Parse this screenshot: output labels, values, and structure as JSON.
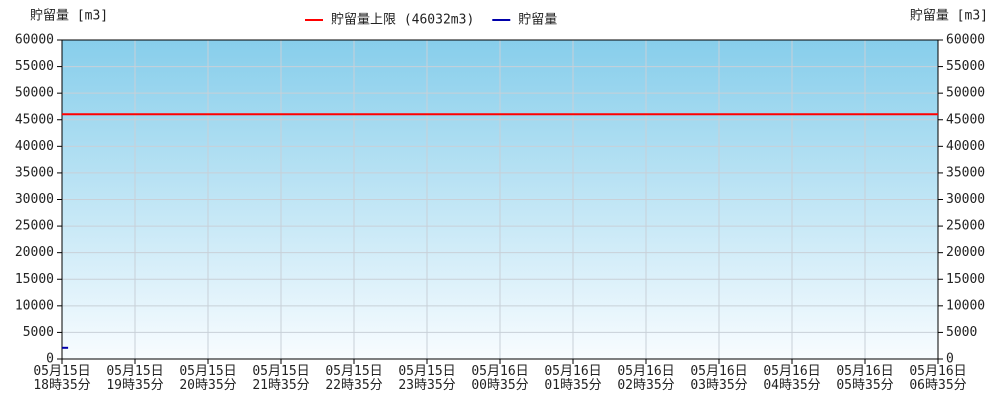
{
  "chart_data": {
    "type": "line",
    "y_label": "貯留量 [m3]",
    "y2_label": "貯留量 [m3]",
    "xlim": [
      "05月15日18時35分",
      "05月16日06時35分"
    ],
    "xticks": [
      [
        "05月15日",
        "18時35分"
      ],
      [
        "05月15日",
        "19時35分"
      ],
      [
        "05月15日",
        "20時35分"
      ],
      [
        "05月15日",
        "21時35分"
      ],
      [
        "05月15日",
        "22時35分"
      ],
      [
        "05月15日",
        "23時35分"
      ],
      [
        "05月16日",
        "00時35分"
      ],
      [
        "05月16日",
        "01時35分"
      ],
      [
        "05月16日",
        "02時35分"
      ],
      [
        "05月16日",
        "03時35分"
      ],
      [
        "05月16日",
        "04時35分"
      ],
      [
        "05月16日",
        "05時35分"
      ],
      [
        "05月16日",
        "06時35分"
      ]
    ],
    "ylim": [
      0,
      60000
    ],
    "yticks": [
      0,
      5000,
      10000,
      15000,
      20000,
      25000,
      30000,
      35000,
      40000,
      45000,
      50000,
      55000,
      60000
    ],
    "grid": true,
    "series": [
      {
        "name": "貯留量上限 (46032m3)",
        "color": "#ff0000",
        "x": [
          "05月15日18時35分",
          "05月16日06時35分"
        ],
        "values": [
          46032,
          46032
        ]
      },
      {
        "name": "貯留量",
        "color": "#0000aa",
        "x": [
          "05月15日18時35分",
          "05月15日18時40分"
        ],
        "values": [
          2100,
          2100
        ]
      }
    ]
  }
}
